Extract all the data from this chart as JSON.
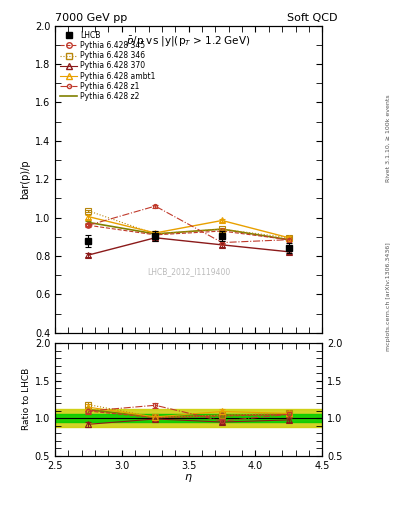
{
  "title_left": "7000 GeV pp",
  "title_right": "Soft QCD",
  "plot_title": "$\\bar{p}$/p vs |y|(p$_{T}$ > 1.2 GeV)",
  "ylabel_main": "bar(p)/p",
  "ylabel_ratio": "Ratio to LHCB",
  "xlabel": "$\\eta$",
  "xlim": [
    2.5,
    4.5
  ],
  "ylim_main": [
    0.4,
    2.0
  ],
  "ylim_ratio": [
    0.5,
    2.0
  ],
  "right_label_top": "Rivet 3.1.10, ≥ 100k events",
  "right_label_bot": "mcplots.cern.ch [arXiv:1306.3436]",
  "watermark": "LHCB_2012_I1119400",
  "eta_points": [
    2.75,
    3.25,
    3.75,
    4.25
  ],
  "lhcb_values": [
    0.877,
    0.905,
    0.905,
    0.842
  ],
  "lhcb_errors": [
    0.03,
    0.025,
    0.025,
    0.025
  ],
  "p345_values": [
    0.96,
    0.91,
    0.93,
    0.885
  ],
  "p345_errors": [
    0.005,
    0.005,
    0.005,
    0.005
  ],
  "p346_values": [
    1.035,
    0.915,
    0.94,
    0.895
  ],
  "p346_errors": [
    0.005,
    0.005,
    0.005,
    0.005
  ],
  "p370_values": [
    0.805,
    0.895,
    0.858,
    0.822
  ],
  "p370_errors": [
    0.01,
    0.01,
    0.01,
    0.01
  ],
  "pambt1_values": [
    1.005,
    0.92,
    0.985,
    0.895
  ],
  "pambt1_errors": [
    0.01,
    0.01,
    0.01,
    0.01
  ],
  "pz1_values": [
    0.96,
    1.06,
    0.87,
    0.885
  ],
  "pz1_errors": [
    0.008,
    0.008,
    0.008,
    0.008
  ],
  "pz2_values": [
    0.975,
    0.915,
    0.94,
    0.885
  ],
  "pz2_errors": [
    0.005,
    0.005,
    0.005,
    0.005
  ],
  "color_345": "#c0392b",
  "color_346": "#b8860b",
  "color_370": "#8b1a1a",
  "color_ambt1": "#e8a000",
  "color_z1": "#c0392b",
  "color_z2": "#808000",
  "lhcb_color": "#000000",
  "green_band": "#00cc00",
  "yellow_band": "#cccc00",
  "yellow_band_lo": 0.88,
  "yellow_band_hi": 1.12,
  "green_band_lo": 0.95,
  "green_band_hi": 1.05
}
